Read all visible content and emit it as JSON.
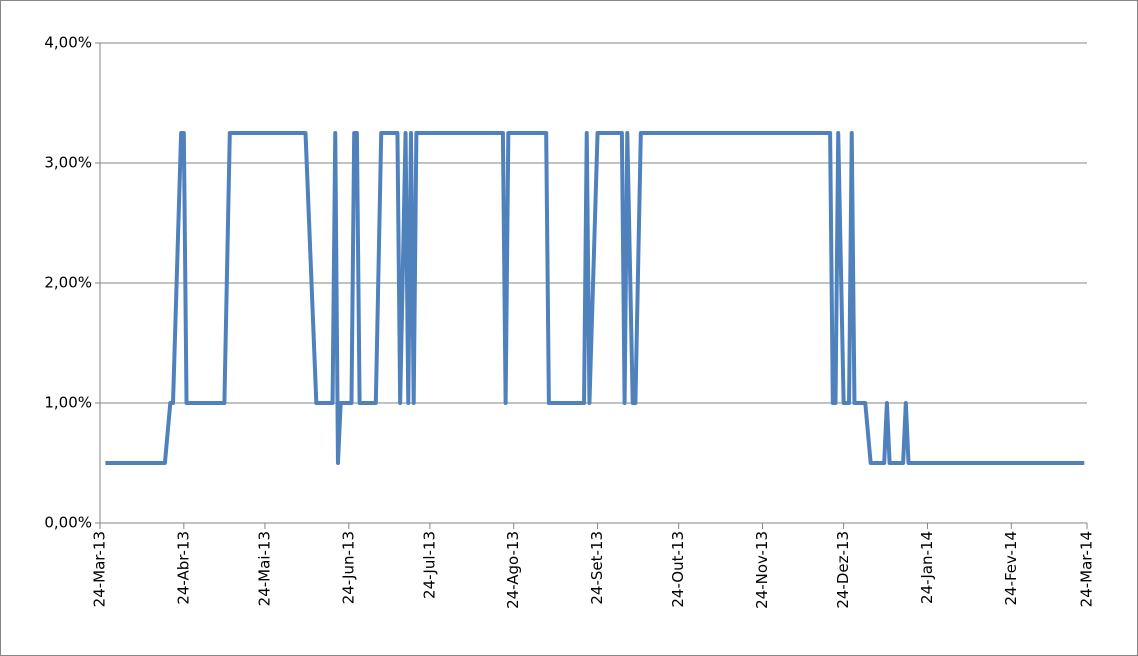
{
  "chart_data": {
    "type": "line",
    "color": "#4f81bd",
    "grid": true,
    "xlim": [
      "2013-03-24",
      "2014-03-24"
    ],
    "xticks": [
      {
        "value": "2013-03-24",
        "label": "24-Mar-13"
      },
      {
        "value": "2013-04-24",
        "label": "24-Abr-13"
      },
      {
        "value": "2013-05-24",
        "label": "24-Mai-13"
      },
      {
        "value": "2013-06-24",
        "label": "24-Jun-13"
      },
      {
        "value": "2013-07-24",
        "label": "24-Jul-13"
      },
      {
        "value": "2013-08-24",
        "label": "24-Ago-13"
      },
      {
        "value": "2013-09-24",
        "label": "24-Set-13"
      },
      {
        "value": "2013-10-24",
        "label": "24-Out-13"
      },
      {
        "value": "2013-11-24",
        "label": "24-Nov-13"
      },
      {
        "value": "2013-12-24",
        "label": "24-Dez-13"
      },
      {
        "value": "2014-01-24",
        "label": "24-Jan-14"
      },
      {
        "value": "2014-02-24",
        "label": "24-Fev-14"
      },
      {
        "value": "2014-03-24",
        "label": "24-Mar-14"
      }
    ],
    "ylim": [
      0,
      4
    ],
    "yticks": [
      {
        "value": 0,
        "label": "0,00%"
      },
      {
        "value": 1,
        "label": "1,00%"
      },
      {
        "value": 2,
        "label": "2,00%"
      },
      {
        "value": 3,
        "label": "3,00%"
      },
      {
        "value": 4,
        "label": "4,00%"
      }
    ],
    "x": [
      "2013-03-26",
      "2013-04-17",
      "2013-04-19",
      "2013-04-20",
      "2013-04-23",
      "2013-04-24",
      "2013-04-25",
      "2013-05-09",
      "2013-05-11",
      "2013-06-08",
      "2013-06-12",
      "2013-06-18",
      "2013-06-19",
      "2013-06-20",
      "2013-06-21",
      "2013-06-25",
      "2013-06-26",
      "2013-06-27",
      "2013-06-28",
      "2013-07-04",
      "2013-07-06",
      "2013-07-12",
      "2013-07-13",
      "2013-07-15",
      "2013-07-16",
      "2013-07-17",
      "2013-07-18",
      "2013-07-19",
      "2013-08-20",
      "2013-08-21",
      "2013-08-22",
      "2013-09-05",
      "2013-09-06",
      "2013-09-19",
      "2013-09-20",
      "2013-09-21",
      "2013-09-24",
      "2013-10-03",
      "2013-10-04",
      "2013-10-05",
      "2013-10-07",
      "2013-10-08",
      "2013-10-10",
      "2013-12-19",
      "2013-12-20",
      "2013-12-21",
      "2013-12-22",
      "2013-12-24",
      "2013-12-26",
      "2013-12-27",
      "2013-12-28",
      "2014-01-01",
      "2014-01-03",
      "2014-01-08",
      "2014-01-09",
      "2014-01-10",
      "2014-01-15",
      "2014-01-16",
      "2014-01-17",
      "2014-03-23"
    ],
    "values": [
      0.5,
      0.5,
      1,
      1,
      3.25,
      3.25,
      1,
      1,
      3.25,
      3.25,
      1,
      1,
      3.25,
      0.5,
      1,
      1,
      3.25,
      3.25,
      1,
      1,
      3.25,
      3.25,
      1,
      3.25,
      1,
      3.25,
      1,
      3.25,
      3.25,
      1,
      3.25,
      3.25,
      1,
      1,
      3.25,
      1,
      3.25,
      3.25,
      1,
      3.25,
      1,
      1,
      3.25,
      3.25,
      1,
      1,
      3.25,
      1,
      1,
      3.25,
      1,
      1,
      0.5,
      0.5,
      1,
      0.5,
      0.5,
      1,
      0.5,
      0.5
    ]
  }
}
